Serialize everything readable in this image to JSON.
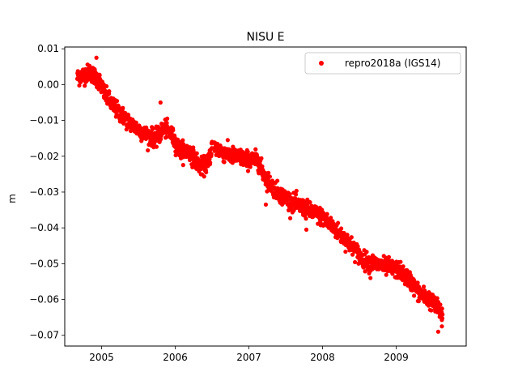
{
  "chart_data": {
    "type": "scatter",
    "title": "NISU E",
    "xlabel": "",
    "ylabel": "m",
    "xlim": [
      2004.5,
      2009.95
    ],
    "ylim": [
      -0.073,
      0.0105
    ],
    "xticks": [
      2005,
      2006,
      2007,
      2008,
      2009
    ],
    "xtick_labels": [
      "2005",
      "2006",
      "2007",
      "2008",
      "2009"
    ],
    "yticks": [
      0.01,
      0.0,
      -0.01,
      -0.02,
      -0.03,
      -0.04,
      -0.05,
      -0.06,
      -0.07
    ],
    "ytick_labels": [
      "0.01",
      "0.00",
      "−0.01",
      "−0.02",
      "−0.03",
      "−0.04",
      "−0.05",
      "−0.06",
      "−0.07"
    ],
    "grid": false,
    "legend_position": "upper right",
    "series": [
      {
        "name": "repro2018a (IGS14)",
        "color": "#ff0000",
        "marker": "circle",
        "x_start": 2004.67,
        "x_end": 2009.63,
        "trend_points": [
          {
            "x": 2004.67,
            "y": 0.002
          },
          {
            "x": 2004.85,
            "y": 0.0035
          },
          {
            "x": 2004.97,
            "y": 0.001
          },
          {
            "x": 2005.05,
            "y": -0.003
          },
          {
            "x": 2005.2,
            "y": -0.007
          },
          {
            "x": 2005.4,
            "y": -0.011
          },
          {
            "x": 2005.6,
            "y": -0.014
          },
          {
            "x": 2005.75,
            "y": -0.015
          },
          {
            "x": 2005.85,
            "y": -0.012
          },
          {
            "x": 2005.95,
            "y": -0.014
          },
          {
            "x": 2006.05,
            "y": -0.018
          },
          {
            "x": 2006.2,
            "y": -0.019
          },
          {
            "x": 2006.35,
            "y": -0.023
          },
          {
            "x": 2006.45,
            "y": -0.022
          },
          {
            "x": 2006.5,
            "y": -0.017
          },
          {
            "x": 2006.65,
            "y": -0.019
          },
          {
            "x": 2006.8,
            "y": -0.02
          },
          {
            "x": 2007.0,
            "y": -0.021
          },
          {
            "x": 2007.12,
            "y": -0.021
          },
          {
            "x": 2007.2,
            "y": -0.025
          },
          {
            "x": 2007.3,
            "y": -0.028
          },
          {
            "x": 2007.45,
            "y": -0.031
          },
          {
            "x": 2007.6,
            "y": -0.033
          },
          {
            "x": 2007.8,
            "y": -0.035
          },
          {
            "x": 2008.0,
            "y": -0.037
          },
          {
            "x": 2008.1,
            "y": -0.039
          },
          {
            "x": 2008.25,
            "y": -0.042
          },
          {
            "x": 2008.4,
            "y": -0.045
          },
          {
            "x": 2008.55,
            "y": -0.049
          },
          {
            "x": 2008.7,
            "y": -0.05
          },
          {
            "x": 2008.9,
            "y": -0.051
          },
          {
            "x": 2009.05,
            "y": -0.052
          },
          {
            "x": 2009.2,
            "y": -0.055
          },
          {
            "x": 2009.3,
            "y": -0.058
          },
          {
            "x": 2009.45,
            "y": -0.06
          },
          {
            "x": 2009.63,
            "y": -0.064
          }
        ],
        "noise_amplitude": 0.0012,
        "outliers": [
          {
            "x": 2005.8,
            "y": -0.005
          },
          {
            "x": 2004.93,
            "y": 0.0075
          },
          {
            "x": 2007.23,
            "y": -0.0335
          },
          {
            "x": 2009.57,
            "y": -0.069
          },
          {
            "x": 2009.62,
            "y": -0.0675
          },
          {
            "x": 2008.65,
            "y": -0.054
          },
          {
            "x": 2007.78,
            "y": -0.0405
          }
        ]
      }
    ]
  }
}
